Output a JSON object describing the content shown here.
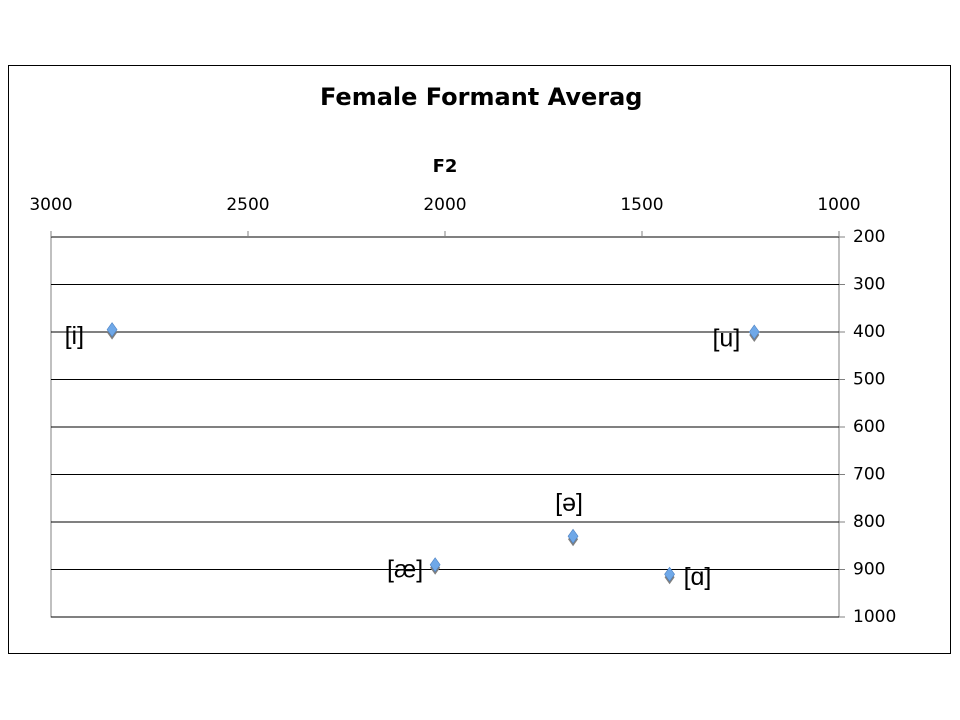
{
  "chart_data": {
    "type": "scatter",
    "title": "Female Formant Averag",
    "x_label": "F2",
    "series": [
      {
        "color": "#6fa8e8",
        "x": [
          2845,
          1215,
          2025,
          1675,
          1430
        ],
        "values": [
          395,
          400,
          890,
          830,
          910
        ],
        "point_labels": [
          "[i]",
          "[u]",
          "[æ]",
          "[ə]",
          "[ɑ]"
        ]
      }
    ],
    "xlim": [
      3000,
      1000
    ],
    "xticks": [
      3000,
      2500,
      2000,
      1500,
      1000
    ],
    "ylim": [
      1000,
      200
    ],
    "yticks": [
      200,
      300,
      400,
      500,
      600,
      700,
      800,
      900,
      1000
    ],
    "grid": true
  }
}
